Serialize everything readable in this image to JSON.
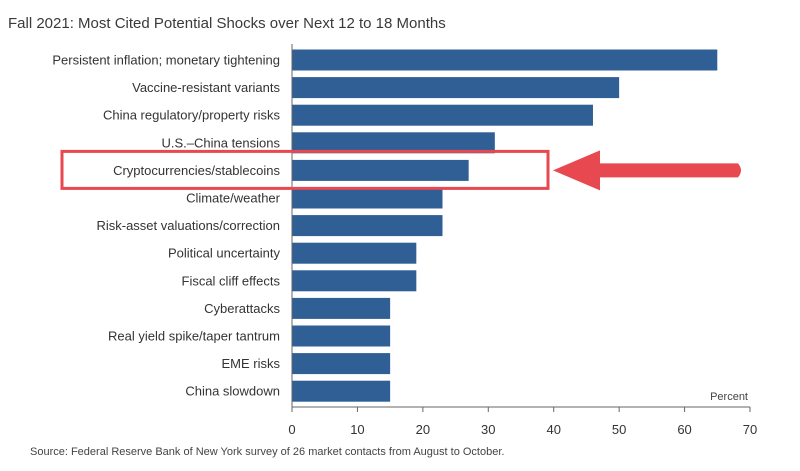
{
  "chart_data": {
    "type": "bar",
    "orientation": "horizontal",
    "title": "Fall 2021: Most Cited Potential Shocks over Next 12 to 18 Months",
    "xlabel": "Percent",
    "ylabel": "",
    "categories": [
      "Persistent inflation; monetary tightening",
      "Vaccine-resistant variants",
      "China regulatory/property risks",
      "U.S.–China tensions",
      "Cryptocurrencies/stablecoins",
      "Climate/weather",
      "Risk-asset valuations/correction",
      "Political uncertainty",
      "Fiscal cliff effects",
      "Cyberattacks",
      "Real yield spike/taper tantrum",
      "EME risks",
      "China slowdown"
    ],
    "values": [
      65,
      50,
      46,
      31,
      27,
      23,
      23,
      19,
      19,
      15,
      15,
      15,
      15
    ],
    "xlim": [
      0,
      70
    ],
    "xticks": [
      "0",
      "10",
      "20",
      "30",
      "40",
      "50",
      "60",
      "70"
    ],
    "highlight_index": 4,
    "grid": false,
    "source": "Source: Federal Reserve Bank of New York survey of 26 market contacts from August to October.",
    "colors": {
      "bar": "#2f5f94",
      "highlight": "#e8484f"
    }
  }
}
